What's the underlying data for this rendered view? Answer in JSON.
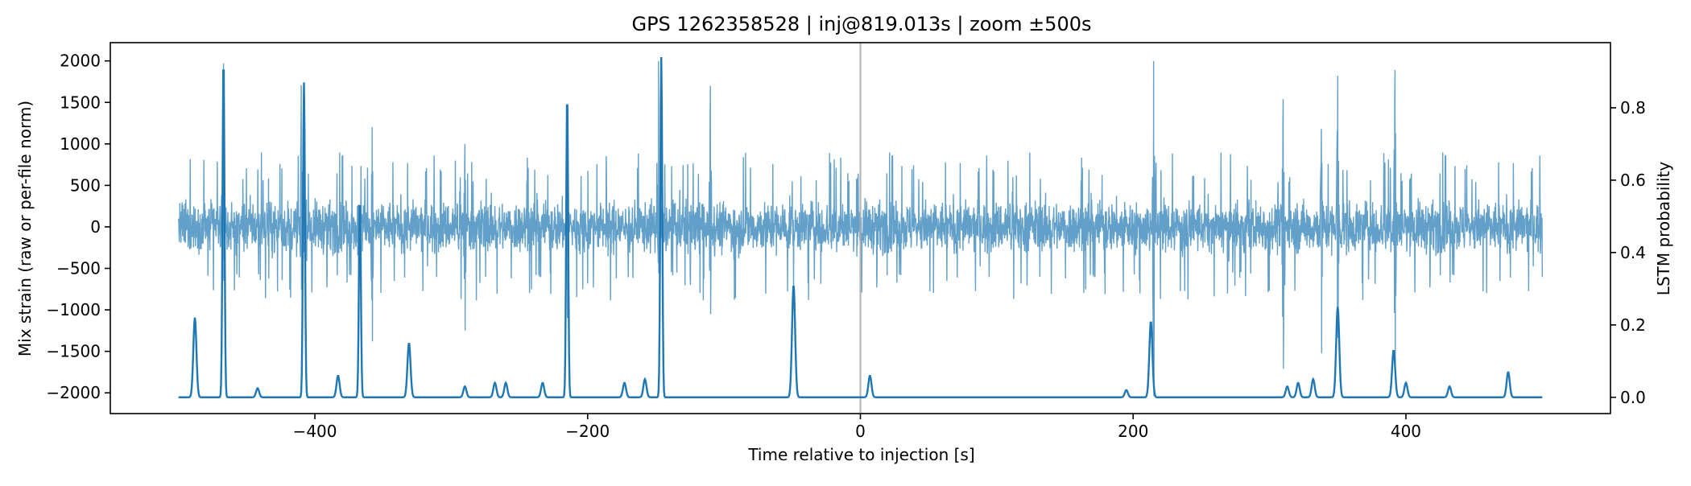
{
  "chart_data": {
    "type": "line",
    "title": "GPS 1262358528 | inj@819.013s | zoom ±500s",
    "xlabel": "Time relative to injection [s]",
    "ylabel_left": "Mix strain (raw or per-file norm)",
    "ylabel_right": "LSTM probability",
    "xlim": [
      -550,
      550
    ],
    "ylim_left": [
      -2250,
      2220
    ],
    "ylim_right": [
      -0.045,
      0.98
    ],
    "x_ticks": [
      -400,
      -200,
      0,
      200,
      400
    ],
    "x_tick_labels": [
      "−400",
      "−200",
      "0",
      "200",
      "400"
    ],
    "y_left_ticks": [
      2000,
      1500,
      1000,
      500,
      0,
      -500,
      -1000,
      -1500,
      -2000
    ],
    "y_left_tick_labels": [
      "2000",
      "1500",
      "1000",
      "500",
      "0",
      "−500",
      "−1000",
      "−1500",
      "−2000"
    ],
    "y_right_ticks": [
      0.8,
      0.6,
      0.4,
      0.2,
      0.0
    ],
    "y_right_tick_labels": [
      "0.8",
      "0.6",
      "0.4",
      "0.2",
      "0.0"
    ],
    "injection_line_x": 0,
    "grid": false,
    "colors": {
      "strain": "#1f77b4",
      "probability": "#1f77b4",
      "injection_line": "#aaaaaa"
    },
    "strain_series": {
      "x_range": [
        -500,
        500
      ],
      "typical_amplitude": 450,
      "bursts": [
        {
          "t": -467,
          "peak": 1970,
          "trough": -650
        },
        {
          "t": -410,
          "peak": 1710,
          "trough": -760
        },
        {
          "t": -368,
          "peak": 270,
          "trough": -690
        },
        {
          "t": -358,
          "peak": 1200,
          "trough": -1380
        },
        {
          "t": -290,
          "peak": 1000,
          "trough": -1250
        },
        {
          "t": -215,
          "peak": 860,
          "trough": -1100
        },
        {
          "t": -148,
          "peak": 2000,
          "trough": -560
        },
        {
          "t": -110,
          "peak": 1700,
          "trough": -1050
        },
        {
          "t": 215,
          "peak": 2000,
          "trough": -2040
        },
        {
          "t": 310,
          "peak": 1540,
          "trough": -1710
        },
        {
          "t": 338,
          "peak": 1180,
          "trough": -1520
        },
        {
          "t": 350,
          "peak": 1820,
          "trough": -1340
        },
        {
          "t": 392,
          "peak": 1890,
          "trough": -1700
        }
      ]
    },
    "probability_series": {
      "x_range": [
        -500,
        500
      ],
      "baseline": 0.0,
      "peaks": [
        {
          "t": -488,
          "p": 0.22
        },
        {
          "t": -467,
          "p": 0.94
        },
        {
          "t": -442,
          "p": 0.025
        },
        {
          "t": -408,
          "p": 0.87
        },
        {
          "t": -383,
          "p": 0.06
        },
        {
          "t": -367,
          "p": 0.55
        },
        {
          "t": -331,
          "p": 0.15
        },
        {
          "t": -290,
          "p": 0.03
        },
        {
          "t": -268,
          "p": 0.04
        },
        {
          "t": -260,
          "p": 0.04
        },
        {
          "t": -233,
          "p": 0.04
        },
        {
          "t": -215,
          "p": 0.84
        },
        {
          "t": -173,
          "p": 0.04
        },
        {
          "t": -158,
          "p": 0.05
        },
        {
          "t": -146,
          "p": 0.94
        },
        {
          "t": -49,
          "p": 0.31
        },
        {
          "t": 7,
          "p": 0.06
        },
        {
          "t": 195,
          "p": 0.02
        },
        {
          "t": 213,
          "p": 0.21
        },
        {
          "t": 313,
          "p": 0.03
        },
        {
          "t": 321,
          "p": 0.04
        },
        {
          "t": 332,
          "p": 0.05
        },
        {
          "t": 350,
          "p": 0.25
        },
        {
          "t": 391,
          "p": 0.13
        },
        {
          "t": 400,
          "p": 0.04
        },
        {
          "t": 432,
          "p": 0.03
        },
        {
          "t": 475,
          "p": 0.07
        }
      ]
    }
  }
}
